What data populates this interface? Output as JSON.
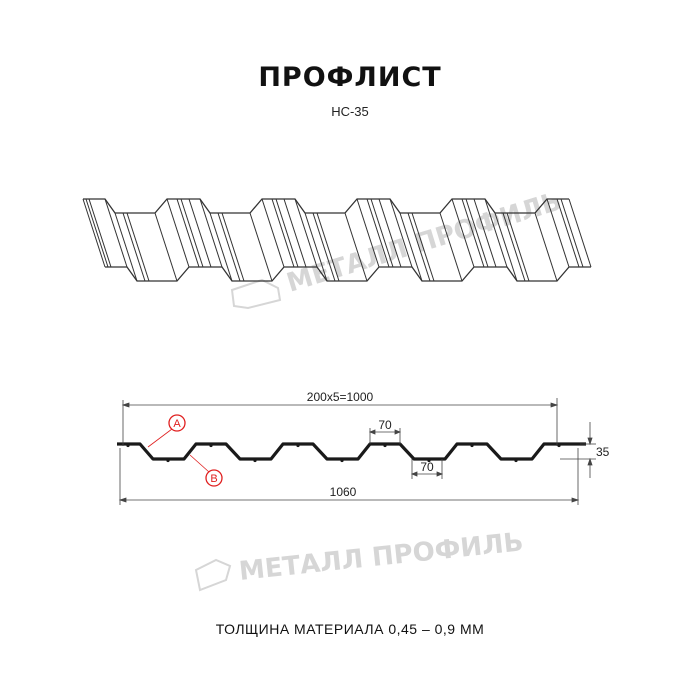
{
  "title": "ПРОФЛИСТ",
  "subtitle": "НС-35",
  "footer": "ТОЛЩИНА МАТЕРИАЛА 0,45 – 0,9 ММ",
  "watermark": "МЕТАЛЛ ПРОФИЛЬ",
  "dimensions": {
    "covering_width": "200x5=1000",
    "total_width": "1060",
    "top_flange": "70",
    "bottom_flange": "70",
    "height": "35"
  },
  "markers": {
    "a": "A",
    "b": "B"
  },
  "colors": {
    "profile": "#1a1a1a",
    "marker": "#e02020",
    "watermark": "#d6d6d6"
  }
}
